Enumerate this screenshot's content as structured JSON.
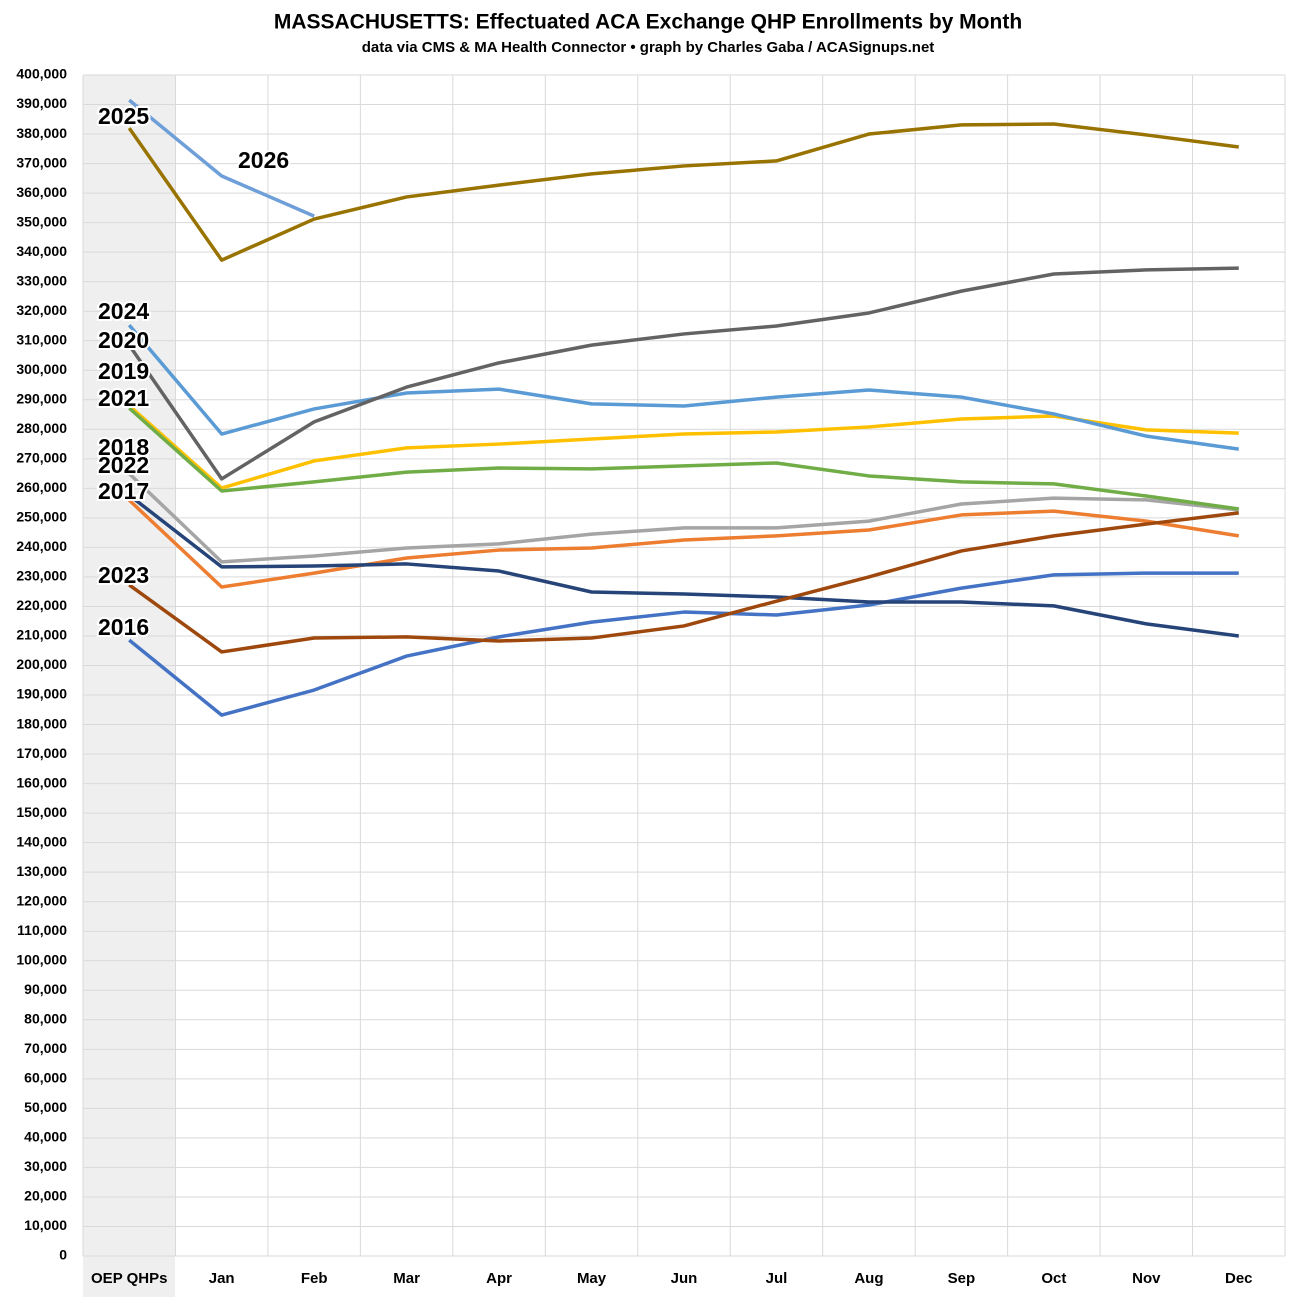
{
  "chart_data": {
    "type": "line",
    "title": "MASSACHUSETTS: Effectuated ACA Exchange QHP Enrollments by Month",
    "subtitle": "data via CMS & MA Health Connector • graph by Charles Gaba / ACASignups.net",
    "categories": [
      "OEP QHPs",
      "Jan",
      "Feb",
      "Mar",
      "Apr",
      "May",
      "Jun",
      "Jul",
      "Aug",
      "Sep",
      "Oct",
      "Nov",
      "Dec"
    ],
    "ylim": [
      0,
      400000
    ],
    "yticks": [
      0,
      {
        "value": 10000,
        "label": "10,000"
      },
      {
        "value": 20000,
        "label": "20,000"
      },
      {
        "value": 30000,
        "label": "30,000"
      },
      {
        "value": 40000,
        "label": "40,000"
      },
      {
        "value": 50000,
        "label": "50,000"
      },
      {
        "value": 60000,
        "label": "60,000"
      },
      {
        "value": 70000,
        "label": "70,000"
      },
      {
        "value": 80000,
        "label": "80,000"
      },
      {
        "value": 90000,
        "label": "90,000"
      },
      {
        "value": 100000,
        "label": "100,000"
      },
      {
        "value": 110000,
        "label": "110,000"
      },
      {
        "value": 120000,
        "label": "120,000"
      },
      {
        "value": 130000,
        "label": "130,000"
      },
      {
        "value": 140000,
        "label": "140,000"
      },
      {
        "value": 150000,
        "label": "150,000"
      },
      {
        "value": 160000,
        "label": "160,000"
      },
      {
        "value": 170000,
        "label": "170,000"
      },
      {
        "value": 180000,
        "label": "180,000"
      },
      {
        "value": 190000,
        "label": "190,000"
      },
      {
        "value": 200000,
        "label": "200,000"
      },
      {
        "value": 210000,
        "label": "210,000"
      },
      {
        "value": 220000,
        "label": "220,000"
      },
      {
        "value": 230000,
        "label": "230,000"
      },
      {
        "value": 240000,
        "label": "240,000"
      },
      {
        "value": 250000,
        "label": "250,000"
      },
      {
        "value": 260000,
        "label": "260,000"
      },
      {
        "value": 270000,
        "label": "270,000"
      },
      {
        "value": 280000,
        "label": "280,000"
      },
      {
        "value": 290000,
        "label": "290,000"
      },
      {
        "value": 300000,
        "label": "300,000"
      },
      {
        "value": 310000,
        "label": "310,000"
      },
      {
        "value": 320000,
        "label": "320,000"
      },
      {
        "value": 330000,
        "label": "330,000"
      },
      {
        "value": 340000,
        "label": "340,000"
      },
      {
        "value": 350000,
        "label": "350,000"
      },
      {
        "value": 360000,
        "label": "360,000"
      },
      {
        "value": 370000,
        "label": "370,000"
      },
      {
        "value": 380000,
        "label": "380,000"
      },
      {
        "value": 390000,
        "label": "390,000"
      },
      {
        "value": 400000,
        "label": "400,000"
      }
    ],
    "grid": true,
    "series": [
      {
        "name": "2016",
        "color": "#4472c4",
        "values": [
          208600,
          183200,
          191700,
          203200,
          209700,
          214700,
          218100,
          217100,
          220500,
          226200,
          230700,
          231300,
          231300
        ]
      },
      {
        "name": "2017",
        "color": "#ed7d31",
        "values": [
          256000,
          226600,
          231300,
          236400,
          239100,
          239800,
          242500,
          243900,
          245900,
          251000,
          252300,
          248900,
          243900
        ]
      },
      {
        "name": "2018",
        "color": "#a5a5a5",
        "values": [
          265000,
          235100,
          237100,
          239800,
          241200,
          244500,
          246600,
          246600,
          248900,
          254700,
          256700,
          256100,
          252700
        ]
      },
      {
        "name": "2019",
        "color": "#ffc000",
        "values": [
          288000,
          260100,
          269300,
          273700,
          275000,
          276700,
          278400,
          279100,
          280800,
          283500,
          284500,
          279800,
          278700
        ]
      },
      {
        "name": "2020",
        "color": "#5b9bd5",
        "values": [
          315300,
          278400,
          286900,
          292300,
          293600,
          288600,
          287900,
          290900,
          293300,
          290900,
          285200,
          277700,
          273300
        ]
      },
      {
        "name": "2021",
        "color": "#70ad47",
        "values": [
          287200,
          259100,
          262200,
          265500,
          266900,
          266600,
          267600,
          268600,
          264200,
          262200,
          261500,
          257400,
          253000
        ]
      },
      {
        "name": "2022",
        "color": "#264478",
        "values": [
          257700,
          233400,
          233700,
          234400,
          232000,
          224900,
          224200,
          223200,
          221500,
          221500,
          220200,
          214100,
          210000
        ]
      },
      {
        "name": "2023",
        "color": "#9e480e",
        "values": [
          227300,
          204600,
          209300,
          209700,
          208300,
          209300,
          213400,
          221800,
          230000,
          238800,
          243900,
          247900,
          251700
        ]
      },
      {
        "name": "2024",
        "color": "#636363",
        "values": [
          308500,
          263200,
          282500,
          294300,
          302500,
          308500,
          312300,
          315000,
          319400,
          326800,
          332600,
          334000,
          334600
        ]
      },
      {
        "name": "2025",
        "color": "#997300",
        "values": [
          382000,
          337300,
          351200,
          358700,
          362700,
          366500,
          369200,
          370900,
          380000,
          383100,
          383400,
          379700,
          375600
        ]
      },
      {
        "name": "2026",
        "color": "#6f9fd8",
        "values": [
          391500,
          365800,
          352200,
          null,
          null,
          null,
          null,
          null,
          null,
          null,
          null,
          null,
          null
        ]
      }
    ]
  }
}
